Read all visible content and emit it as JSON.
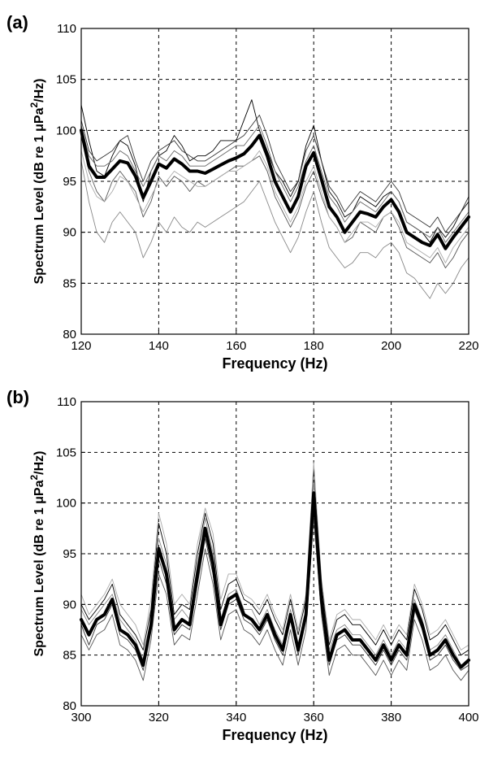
{
  "panels": [
    {
      "panel_label": "(a)",
      "chart_data": {
        "type": "line",
        "xlabel": "Frequency (Hz)",
        "ylabel_main": "Spectrum Level (dB re 1 ",
        "ylabel_mu": "μPa",
        "ylabel_sup": "2",
        "ylabel_tail": "/Hz)",
        "xlim": [
          120,
          220
        ],
        "ylim": [
          80,
          110
        ],
        "xticks": [
          120,
          140,
          160,
          180,
          200,
          220
        ],
        "yticks": [
          80,
          85,
          90,
          95,
          100,
          105,
          110
        ],
        "grid": true,
        "mean_series": {
          "x": [
            120,
            122,
            124,
            126,
            128,
            130,
            132,
            134,
            136,
            138,
            140,
            142,
            144,
            146,
            148,
            150,
            152,
            154,
            156,
            158,
            160,
            162,
            164,
            166,
            168,
            170,
            172,
            174,
            176,
            178,
            180,
            182,
            184,
            186,
            188,
            190,
            192,
            194,
            196,
            198,
            200,
            202,
            204,
            206,
            208,
            210,
            212,
            214,
            216,
            218,
            220
          ],
          "y": [
            100,
            96.5,
            95.4,
            95.4,
            96.2,
            97.0,
            96.8,
            95.5,
            93.4,
            95.0,
            96.7,
            96.3,
            97.2,
            96.7,
            96.0,
            96.0,
            95.8,
            96.2,
            96.6,
            97.0,
            97.3,
            97.7,
            98.5,
            99.5,
            97.5,
            95.0,
            93.5,
            92.0,
            93.5,
            96.5,
            97.8,
            95.2,
            92.5,
            91.5,
            90.0,
            91.0,
            92.0,
            91.8,
            91.5,
            92.5,
            93.2,
            92.0,
            90.0,
            89.5,
            89.0,
            88.7,
            89.8,
            88.4,
            89.5,
            90.5,
            91.5
          ]
        },
        "individual_series": [
          {
            "y": [
              102.5,
              99.0,
              96.0,
              95.5,
              97.5,
              99.0,
              98.5,
              96.5,
              93.0,
              96.0,
              97.5,
              98.0,
              99.5,
              98.5,
              97.0,
              97.5,
              97.5,
              98.0,
              99.0,
              99.0,
              99.0,
              101.0,
              103.0,
              100.0,
              98.0,
              96.0,
              95.0,
              93.5,
              95.0,
              98.5,
              100.5,
              97.0,
              94.0,
              93.0,
              91.5,
              92.0,
              93.5,
              93.0,
              92.5,
              93.5,
              94.0,
              93.0,
              91.0,
              90.5,
              90.0,
              89.0,
              90.5,
              89.5,
              90.5,
              92.0,
              93.0
            ]
          },
          {
            "y": [
              99.5,
              96.0,
              94.0,
              93.0,
              95.0,
              96.0,
              95.0,
              94.0,
              91.5,
              93.0,
              95.5,
              94.5,
              95.5,
              95.0,
              94.0,
              95.0,
              94.5,
              95.0,
              95.5,
              96.0,
              96.5,
              96.5,
              97.0,
              97.5,
              96.0,
              93.5,
              92.0,
              90.5,
              92.0,
              94.5,
              96.0,
              93.5,
              91.5,
              90.5,
              89.0,
              89.5,
              91.0,
              90.5,
              90.0,
              91.5,
              92.0,
              90.5,
              88.5,
              88.0,
              87.5,
              87.0,
              88.0,
              86.5,
              87.5,
              89.0,
              90.0
            ]
          },
          {
            "y": [
              97.0,
              93.0,
              90.0,
              89.0,
              91.0,
              92.0,
              91.0,
              90.0,
              87.5,
              89.0,
              91.0,
              90.0,
              91.5,
              90.5,
              90.0,
              91.0,
              90.5,
              91.0,
              91.5,
              92.0,
              92.5,
              93.0,
              94.0,
              95.0,
              93.0,
              91.0,
              89.5,
              88.0,
              89.5,
              92.0,
              94.0,
              91.0,
              88.5,
              87.5,
              86.5,
              87.0,
              88.0,
              88.0,
              87.5,
              88.5,
              89.0,
              88.0,
              86.0,
              85.5,
              84.5,
              83.5,
              85.0,
              84.0,
              85.0,
              86.5,
              87.5
            ]
          },
          {
            "y": [
              101.0,
              98.0,
              97.0,
              97.5,
              98.0,
              99.0,
              99.5,
              97.0,
              95.0,
              97.0,
              98.0,
              98.5,
              99.0,
              98.0,
              97.5,
              97.0,
              97.0,
              97.5,
              98.0,
              98.5,
              99.0,
              99.5,
              100.5,
              101.5,
              99.5,
              97.0,
              95.5,
              94.0,
              95.0,
              98.0,
              99.5,
              97.0,
              94.5,
              93.5,
              92.0,
              93.0,
              94.0,
              93.5,
              93.0,
              94.0,
              95.0,
              94.0,
              92.0,
              91.5,
              91.0,
              90.5,
              91.5,
              90.0,
              91.0,
              92.0,
              93.5
            ]
          },
          {
            "y": [
              98.0,
              95.0,
              93.5,
              93.0,
              94.0,
              95.5,
              95.0,
              93.5,
              92.0,
              93.5,
              95.0,
              95.0,
              96.0,
              95.5,
              95.0,
              94.5,
              94.5,
              95.0,
              95.5,
              96.0,
              96.0,
              96.5,
              97.0,
              98.0,
              96.5,
              94.0,
              92.5,
              91.0,
              92.5,
              95.0,
              96.5,
              94.0,
              91.5,
              90.5,
              89.0,
              90.0,
              91.0,
              91.0,
              90.5,
              91.5,
              92.0,
              91.0,
              89.0,
              88.5,
              88.0,
              87.5,
              88.5,
              87.0,
              88.5,
              89.5,
              90.5
            ]
          },
          {
            "y": [
              100.5,
              97.5,
              96.5,
              96.5,
              97.0,
              98.0,
              97.5,
              96.0,
              94.5,
              96.0,
              97.5,
              97.0,
              98.0,
              97.5,
              96.5,
              96.5,
              96.5,
              97.0,
              97.5,
              98.0,
              98.5,
              98.5,
              99.5,
              100.5,
              98.5,
              96.0,
              94.5,
              93.0,
              94.5,
              97.0,
              98.5,
              96.0,
              93.5,
              92.5,
              91.0,
              92.0,
              93.0,
              92.5,
              92.0,
              93.0,
              94.0,
              93.0,
              91.0,
              90.5,
              90.0,
              89.5,
              90.5,
              89.0,
              90.0,
              91.0,
              92.0
            ]
          }
        ]
      }
    },
    {
      "panel_label": "(b)",
      "chart_data": {
        "type": "line",
        "xlabel": "Frequency (Hz)",
        "ylabel_main": "Spectrum Level (dB re 1 ",
        "ylabel_mu": "μPa",
        "ylabel_sup": "2",
        "ylabel_tail": "/Hz)",
        "xlim": [
          300,
          400
        ],
        "ylim": [
          80,
          110
        ],
        "xticks": [
          300,
          320,
          340,
          360,
          380,
          400
        ],
        "yticks": [
          80,
          85,
          90,
          95,
          100,
          105,
          110
        ],
        "grid": true,
        "mean_series": {
          "x": [
            300,
            302,
            304,
            306,
            308,
            310,
            312,
            314,
            316,
            318,
            320,
            322,
            324,
            326,
            328,
            330,
            332,
            334,
            336,
            338,
            340,
            342,
            344,
            346,
            348,
            350,
            352,
            354,
            356,
            358,
            360,
            362,
            364,
            366,
            368,
            370,
            372,
            374,
            376,
            378,
            380,
            382,
            384,
            386,
            388,
            390,
            392,
            394,
            396,
            398,
            400
          ],
          "y": [
            88.5,
            87.0,
            88.5,
            89.0,
            90.5,
            87.5,
            87.0,
            86.0,
            84.0,
            88.0,
            95.5,
            93.0,
            87.5,
            88.5,
            88.0,
            93.0,
            97.5,
            94.0,
            88.0,
            90.5,
            91.0,
            89.0,
            88.5,
            87.5,
            89.0,
            87.0,
            85.5,
            89.0,
            85.5,
            89.0,
            101.0,
            90.5,
            84.5,
            87.0,
            87.5,
            86.5,
            86.5,
            85.5,
            84.5,
            86.0,
            84.5,
            86.0,
            85.0,
            90.0,
            88.0,
            85.0,
            85.5,
            86.5,
            85.0,
            83.8,
            84.5
          ]
        },
        "individual_series": [
          {
            "y": [
              90.0,
              88.5,
              89.5,
              90.5,
              92.0,
              89.0,
              88.0,
              87.0,
              85.5,
              89.5,
              98.0,
              95.0,
              89.0,
              90.0,
              89.5,
              95.0,
              99.0,
              96.0,
              89.5,
              92.0,
              92.5,
              90.5,
              90.0,
              89.0,
              90.5,
              88.5,
              87.0,
              90.5,
              87.0,
              90.5,
              103.5,
              92.0,
              86.0,
              88.5,
              89.0,
              88.0,
              88.0,
              87.0,
              86.0,
              87.5,
              86.0,
              87.5,
              86.5,
              91.5,
              89.5,
              86.5,
              87.0,
              88.0,
              86.5,
              85.0,
              85.5
            ]
          },
          {
            "y": [
              87.0,
              85.5,
              87.0,
              87.5,
              89.0,
              86.0,
              85.5,
              84.5,
              82.5,
              86.5,
              93.0,
              91.0,
              86.0,
              87.0,
              86.5,
              91.0,
              95.5,
              92.0,
              86.5,
              89.0,
              89.5,
              87.5,
              87.0,
              86.0,
              87.5,
              85.5,
              84.0,
              87.5,
              84.0,
              87.5,
              98.5,
              89.0,
              83.0,
              85.5,
              86.0,
              85.0,
              85.0,
              84.0,
              83.0,
              84.5,
              83.0,
              84.5,
              83.5,
              88.5,
              86.5,
              83.5,
              84.0,
              85.0,
              83.5,
              82.5,
              83.5
            ]
          },
          {
            "y": [
              89.5,
              88.0,
              89.0,
              90.0,
              91.0,
              88.5,
              87.5,
              86.5,
              84.5,
              88.5,
              96.5,
              94.0,
              88.5,
              89.5,
              88.5,
              94.0,
              98.5,
              95.0,
              88.5,
              91.0,
              91.5,
              89.5,
              89.5,
              88.0,
              89.5,
              87.5,
              86.0,
              89.5,
              86.0,
              89.5,
              102.0,
              91.5,
              85.5,
              87.5,
              88.0,
              87.0,
              87.0,
              86.0,
              85.0,
              86.5,
              85.0,
              86.5,
              85.5,
              90.5,
              88.5,
              85.5,
              86.0,
              87.0,
              85.5,
              84.0,
              84.5
            ]
          },
          {
            "y": [
              88.0,
              86.0,
              88.0,
              88.5,
              90.0,
              87.0,
              86.5,
              85.5,
              83.5,
              87.5,
              94.5,
              92.0,
              87.0,
              88.0,
              87.5,
              92.0,
              96.5,
              93.0,
              87.5,
              90.0,
              90.5,
              88.5,
              88.0,
              87.0,
              88.5,
              86.5,
              85.0,
              88.5,
              85.0,
              88.5,
              100.0,
              90.0,
              84.0,
              86.5,
              87.0,
              86.0,
              86.0,
              85.0,
              84.0,
              85.5,
              84.0,
              85.5,
              84.5,
              89.5,
              87.5,
              84.5,
              85.0,
              86.0,
              84.5,
              83.5,
              84.0
            ]
          },
          {
            "y": [
              91.0,
              89.0,
              90.0,
              91.0,
              92.5,
              90.0,
              89.0,
              88.0,
              86.0,
              90.5,
              99.0,
              96.0,
              90.0,
              91.0,
              90.0,
              96.0,
              99.5,
              97.0,
              90.5,
              93.0,
              93.0,
              91.0,
              90.5,
              89.5,
              91.0,
              89.0,
              87.5,
              91.0,
              87.5,
              91.0,
              104.0,
              92.5,
              86.5,
              89.0,
              89.5,
              88.5,
              88.5,
              87.5,
              86.5,
              88.0,
              86.5,
              88.0,
              87.0,
              92.0,
              90.0,
              87.0,
              87.5,
              88.5,
              87.0,
              85.5,
              86.0
            ]
          }
        ]
      }
    }
  ]
}
